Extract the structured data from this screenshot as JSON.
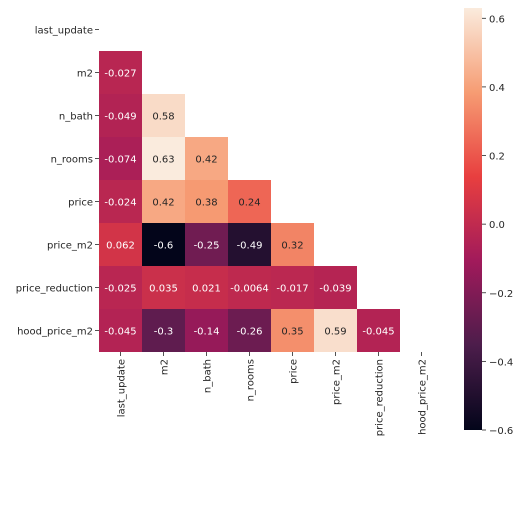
{
  "chart_data": {
    "type": "heatmap",
    "mask": "upper-triangle",
    "variables": [
      "last_update",
      "m2",
      "n_bath",
      "n_rooms",
      "price",
      "price_m2",
      "price_reduction",
      "hood_price_m2"
    ],
    "y_tick_labels": [
      "last_update",
      "m2",
      "n_bath",
      "n_rooms",
      "price",
      "price_m2",
      "price_reduction",
      "hood_price_m2"
    ],
    "x_tick_labels": [
      "last_update",
      "m2",
      "n_bath",
      "n_rooms",
      "price",
      "price_m2",
      "price_reduction",
      "hood_price_m2"
    ],
    "cells": [
      {
        "row": 1,
        "col": 0,
        "value": -0.027,
        "label": "-0.027"
      },
      {
        "row": 2,
        "col": 0,
        "value": -0.049,
        "label": "-0.049"
      },
      {
        "row": 2,
        "col": 1,
        "value": 0.58,
        "label": "0.58"
      },
      {
        "row": 3,
        "col": 0,
        "value": -0.074,
        "label": "-0.074"
      },
      {
        "row": 3,
        "col": 1,
        "value": 0.63,
        "label": "0.63"
      },
      {
        "row": 3,
        "col": 2,
        "value": 0.42,
        "label": "0.42"
      },
      {
        "row": 4,
        "col": 0,
        "value": -0.024,
        "label": "-0.024"
      },
      {
        "row": 4,
        "col": 1,
        "value": 0.42,
        "label": "0.42"
      },
      {
        "row": 4,
        "col": 2,
        "value": 0.38,
        "label": "0.38"
      },
      {
        "row": 4,
        "col": 3,
        "value": 0.24,
        "label": "0.24"
      },
      {
        "row": 5,
        "col": 0,
        "value": 0.062,
        "label": "0.062"
      },
      {
        "row": 5,
        "col": 1,
        "value": -0.6,
        "label": "-0.6"
      },
      {
        "row": 5,
        "col": 2,
        "value": -0.25,
        "label": "-0.25"
      },
      {
        "row": 5,
        "col": 3,
        "value": -0.49,
        "label": "-0.49"
      },
      {
        "row": 5,
        "col": 4,
        "value": 0.32,
        "label": "0.32"
      },
      {
        "row": 6,
        "col": 0,
        "value": -0.025,
        "label": "-0.025"
      },
      {
        "row": 6,
        "col": 1,
        "value": 0.035,
        "label": "0.035"
      },
      {
        "row": 6,
        "col": 2,
        "value": 0.021,
        "label": "0.021"
      },
      {
        "row": 6,
        "col": 3,
        "value": -0.0064,
        "label": "-0.0064"
      },
      {
        "row": 6,
        "col": 4,
        "value": -0.017,
        "label": "-0.017"
      },
      {
        "row": 6,
        "col": 5,
        "value": -0.039,
        "label": "-0.039"
      },
      {
        "row": 7,
        "col": 0,
        "value": -0.045,
        "label": "-0.045"
      },
      {
        "row": 7,
        "col": 1,
        "value": -0.3,
        "label": "-0.3"
      },
      {
        "row": 7,
        "col": 2,
        "value": -0.14,
        "label": "-0.14"
      },
      {
        "row": 7,
        "col": 3,
        "value": -0.26,
        "label": "-0.26"
      },
      {
        "row": 7,
        "col": 4,
        "value": 0.35,
        "label": "0.35"
      },
      {
        "row": 7,
        "col": 5,
        "value": 0.59,
        "label": "0.59"
      },
      {
        "row": 7,
        "col": 6,
        "value": -0.045,
        "label": "-0.045"
      }
    ],
    "colorbar": {
      "vmin": -0.6,
      "vmax": 0.63,
      "ticks": [
        0.6,
        0.4,
        0.2,
        0.0,
        -0.2,
        -0.4,
        -0.6
      ],
      "tick_labels": [
        "0.6",
        "0.4",
        "0.2",
        "0.0",
        "−0.2",
        "−0.4",
        "−0.6"
      ],
      "colormap": "rocket",
      "colors": [
        "#03051a",
        "#4c1d4b",
        "#a11a5b",
        "#e83f3f",
        "#f69c73",
        "#faebdd"
      ]
    },
    "title": "",
    "xlabel": "",
    "ylabel": ""
  }
}
